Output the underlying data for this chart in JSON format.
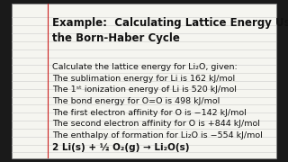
{
  "bg_color": "#1a1a1a",
  "paper_color": "#f5f5f0",
  "title": "Example:  Calculating Lattice Energy Using\nthe Born-Haber Cycle",
  "lines": [
    "Calculate the lattice energy for Li₂O, given:",
    "The sublimation energy for Li is 162 kJ/mol",
    "The 1ˢᵗ ionization energy of Li is 520 kJ/mol",
    "The bond energy for O=O is 498 kJ/mol",
    "The first electron affinity for O is −142 kJ/mol",
    "The second electron affinity for O is +844 kJ/mol",
    "The enthalpy of formation for Li₂O is −554 kJ/mol"
  ],
  "equation": "2 Li(s) + ½ O₂(g) → Li₂O(s)",
  "red_line_x": 0.135,
  "line_color": "#cccccc",
  "title_fontsize": 8.5,
  "body_fontsize": 6.8,
  "eq_fontsize": 7.5
}
